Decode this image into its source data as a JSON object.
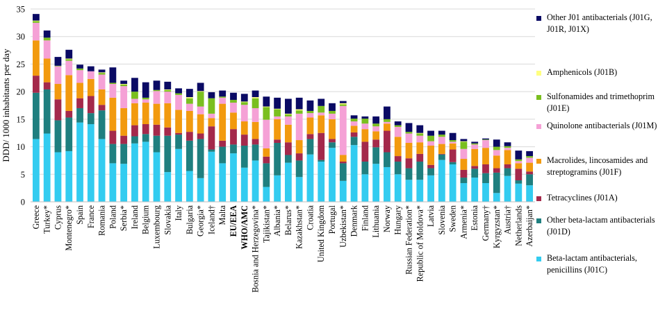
{
  "chart_data": {
    "type": "bar",
    "stacked": true,
    "title": "",
    "xlabel": "",
    "ylabel": "DDD/ 1000 inhabitants per day",
    "ylim": [
      0,
      35
    ],
    "yticks": [
      0,
      5,
      10,
      15,
      20,
      25,
      30,
      35
    ],
    "grid": true,
    "legend_position": "right",
    "categories": [
      "Greece",
      "Turkey*",
      "Cyprus",
      "Montenegro*",
      "Spain",
      "France",
      "Romania",
      "Poland",
      "Serbia*",
      "Ireland",
      "Belgium",
      "Luxembourg",
      "Slovakia",
      "Italy",
      "Bulgaria",
      "Georgia*",
      "Iceland†",
      "Malta",
      "EU/EEA",
      "WHO/AMC",
      "Bosnia and Herzegovina*",
      "Tajikistan*",
      "Albania*",
      "Belarus*",
      "Kazakhstan*",
      "Croatia",
      "United Kingdom",
      "Portugal",
      "Uzbekistan*",
      "Denmark",
      "Finland",
      "Lithuania",
      "Norway",
      "Hungary",
      "Russian Federation*",
      "Republic of Moldova*",
      "Latvia",
      "Slovenia",
      "Sweden",
      "Armenia*",
      "Estonia",
      "Germany†",
      "Kyrgyzstan*",
      "Austria†",
      "Netherlands",
      "Azerbaijan*"
    ],
    "bold_categories": [
      "EU/EEA",
      "WHO/AMC"
    ],
    "series": [
      {
        "name": "Beta-lactam antibacterials, penicillins (J01C)",
        "color": "#33ccf0",
        "values": [
          11.4,
          12.4,
          9.0,
          9.2,
          14.4,
          14.1,
          11.4,
          7.0,
          6.9,
          10.6,
          10.9,
          9.0,
          5.4,
          9.6,
          5.6,
          4.3,
          9.1,
          7.0,
          8.8,
          6.2,
          7.5,
          2.7,
          4.8,
          7.1,
          4.5,
          8.6,
          7.3,
          9.8,
          3.8,
          10.3,
          5.0,
          6.9,
          6.3,
          5.0,
          4.0,
          4.0,
          4.8,
          7.6,
          6.8,
          3.4,
          4.4,
          3.4,
          1.6,
          4.7,
          3.3,
          3.0
        ]
      },
      {
        "name": "Other beta-lactam antibacterials (J01D)",
        "color": "#1f7f7f",
        "values": [
          8.4,
          8.0,
          5.8,
          6.1,
          2.6,
          2.0,
          5.2,
          3.5,
          3.6,
          1.3,
          1.4,
          3.0,
          6.6,
          2.6,
          5.5,
          7.1,
          0.4,
          3.0,
          1.6,
          4.0,
          2.9,
          4.3,
          5.9,
          1.4,
          3.0,
          2.8,
          0.3,
          1.0,
          3.2,
          1.5,
          2.3,
          3.0,
          2.7,
          2.3,
          2.1,
          3.3,
          1.3,
          1.0,
          0.4,
          1.0,
          1.6,
          1.8,
          3.7,
          1.4,
          0.6,
          2.0
        ]
      },
      {
        "name": "Tetracyclines (J01A)",
        "color": "#a4294b",
        "values": [
          3.1,
          1.3,
          3.8,
          1.2,
          1.8,
          3.1,
          1.0,
          2.4,
          1.5,
          2.0,
          1.8,
          2.0,
          1.5,
          0.3,
          1.6,
          1.0,
          4.2,
          1.1,
          2.8,
          2.0,
          1.0,
          1.2,
          0.6,
          2.3,
          1.3,
          0.9,
          4.9,
          0.6,
          0.3,
          0.8,
          3.6,
          1.4,
          3.9,
          1.0,
          1.8,
          1.4,
          0.6,
          0.1,
          2.3,
          1.4,
          0.5,
          1.6,
          0.8,
          0.7,
          2.1,
          0.5
        ]
      },
      {
        "name": "Macrolides, lincosamides and streptogramins (J01F)",
        "color": "#f29a0e",
        "values": [
          6.4,
          4.3,
          2.8,
          6.5,
          2.8,
          3.1,
          2.8,
          6.0,
          5.0,
          4.0,
          3.9,
          3.8,
          4.4,
          4.2,
          3.8,
          3.5,
          1.5,
          6.7,
          3.0,
          2.4,
          3.1,
          1.5,
          3.7,
          3.2,
          2.4,
          3.0,
          3.2,
          3.6,
          1.2,
          1.2,
          2.3,
          1.5,
          1.3,
          3.5,
          2.8,
          2.1,
          3.5,
          1.8,
          1.1,
          2.0,
          3.1,
          3.0,
          2.3,
          2.6,
          1.0,
          1.6
        ]
      },
      {
        "name": "Quinolone antibacterials (J01M)",
        "color": "#f5a1d6",
        "values": [
          3.2,
          3.3,
          3.2,
          2.6,
          2.3,
          1.4,
          2.7,
          2.5,
          4.0,
          0.8,
          0.6,
          2.3,
          2.1,
          2.7,
          1.3,
          1.4,
          0.8,
          1.1,
          1.8,
          3.0,
          2.5,
          5.2,
          0.5,
          1.5,
          4.8,
          0.8,
          0.5,
          1.0,
          8.9,
          0.8,
          1.0,
          0.9,
          0.3,
          1.8,
          1.7,
          1.2,
          0.8,
          1.3,
          0.3,
          1.8,
          0.8,
          1.4,
          1.0,
          0.4,
          0.4,
          0.9
        ]
      },
      {
        "name": "Sulfonamides and trimethoprim (J01E)",
        "color": "#7abf1f",
        "values": [
          0.3,
          0.5,
          0.1,
          0.3,
          0.3,
          0.0,
          0.3,
          0.2,
          0.3,
          1.3,
          0.3,
          0.2,
          0.3,
          0.3,
          1.0,
          2.7,
          2.8,
          0.2,
          0.5,
          0.5,
          1.8,
          2.3,
          1.3,
          0.4,
          0.6,
          0.4,
          1.2,
          0.5,
          0.3,
          0.5,
          0.9,
          0.5,
          0.5,
          0.3,
          0.3,
          0.4,
          1.0,
          0.4,
          0.3,
          1.3,
          0.2,
          0.1,
          0.6,
          0.3,
          0.3,
          0.3
        ]
      },
      {
        "name": "Amphenicols (J01B)",
        "color": "#ffff80",
        "values": [
          0.1,
          0.0,
          0.0,
          0.1,
          0.0,
          0.0,
          0.1,
          0.0,
          0.1,
          0.0,
          0.0,
          0.0,
          0.1,
          0.0,
          0.2,
          0.1,
          0.0,
          0.0,
          0.0,
          0.1,
          0.2,
          0.1,
          0.1,
          0.1,
          0.2,
          0.0,
          0.0,
          0.0,
          0.2,
          0.0,
          0.0,
          0.0,
          0.0,
          0.0,
          0.0,
          0.1,
          0.0,
          0.0,
          0.0,
          0.1,
          0.0,
          0.0,
          0.0,
          0.0,
          0.0,
          0.0
        ]
      },
      {
        "name": "Other J01 antibacterials (J01G, J01R, J01X)",
        "color": "#0a0a64",
        "values": [
          1.2,
          1.3,
          1.6,
          1.6,
          0.7,
          0.9,
          0.5,
          2.8,
          0.6,
          2.5,
          2.8,
          1.7,
          1.4,
          0.9,
          1.5,
          1.5,
          1.1,
          1.1,
          1.3,
          1.4,
          1.2,
          1.8,
          2.0,
          2.7,
          2.1,
          1.9,
          1.3,
          1.4,
          0.4,
          0.6,
          0.4,
          1.3,
          2.3,
          0.7,
          1.6,
          1.4,
          0.9,
          0.7,
          1.3,
          0.4,
          0.3,
          0.2,
          1.3,
          0.7,
          1.6,
          0.9
        ]
      }
    ]
  },
  "legend": {
    "items": [
      {
        "label": "Other J01 antibacterials (J01G, J01R, J01X)",
        "color": "#0a0a64"
      },
      {
        "label": "Amphenicols (J01B)",
        "color": "#ffff80"
      },
      {
        "label": "Sulfonamides and trimethoprim (J01E)",
        "color": "#7abf1f"
      },
      {
        "label": "Quinolone antibacterials (J01M)",
        "color": "#f5a1d6"
      },
      {
        "label": "Macrolides, lincosamides and streptogramins (J01F)",
        "color": "#f29a0e"
      },
      {
        "label": "Tetracyclines (J01A)",
        "color": "#a4294b"
      },
      {
        "label": "Other beta-lactam antibacterials (J01D)",
        "color": "#1f7f7f"
      },
      {
        "label": "Beta-lactam antibacterials, penicillins (J01C)",
        "color": "#33ccf0"
      }
    ]
  }
}
